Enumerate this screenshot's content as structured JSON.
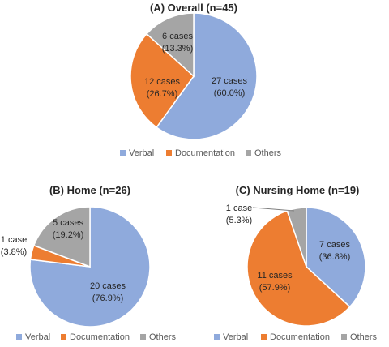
{
  "colors": {
    "verbal": "#8FAADC",
    "documentation": "#ED7D31",
    "others": "#A5A5A5"
  },
  "chart_data": [
    {
      "type": "pie",
      "title": "(A) Overall (n=45)",
      "categories": [
        "Verbal",
        "Documentation",
        "Others"
      ],
      "values": [
        27,
        12,
        6
      ],
      "slice_labels": [
        [
          "27 cases",
          "(60.0%)"
        ],
        [
          "12 cases",
          "(26.7%)"
        ],
        [
          "6 cases",
          "(13.3%)"
        ]
      ],
      "legend": [
        "Verbal",
        "Documentation",
        "Others"
      ],
      "legend_position": "bottom"
    },
    {
      "type": "pie",
      "title": "(B) Home (n=26)",
      "categories": [
        "Verbal",
        "Documentation",
        "Others"
      ],
      "values": [
        20,
        1,
        5
      ],
      "slice_labels": [
        [
          "20 cases",
          "(76.9%)"
        ],
        [
          "1 case",
          "(3.8%)"
        ],
        [
          "5 cases",
          "(19.2%)"
        ]
      ],
      "legend": [
        "Verbal",
        "Documentation",
        "Others"
      ],
      "legend_position": "bottom"
    },
    {
      "type": "pie",
      "title": "(C) Nursing Home (n=19)",
      "categories": [
        "Verbal",
        "Documentation",
        "Others"
      ],
      "values": [
        7,
        11,
        1
      ],
      "slice_labels": [
        [
          "7 cases",
          "(36.8%)"
        ],
        [
          "11 cases",
          "(57.9%)"
        ],
        [
          "1 case",
          "(5.3%)"
        ]
      ],
      "legend": [
        "Verbal",
        "Documentation",
        "Others"
      ],
      "legend_position": "bottom"
    }
  ]
}
